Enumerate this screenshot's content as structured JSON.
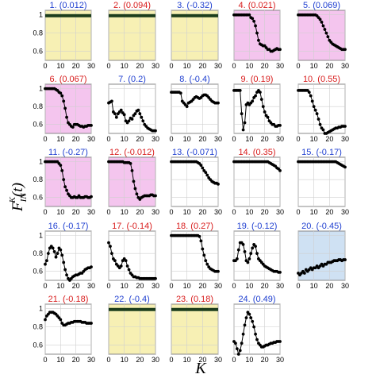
{
  "figure": {
    "ylabel": "F_IN^K(t)",
    "ylabel_main": "F",
    "ylabel_sup": "K",
    "ylabel_sub": "IN",
    "ylabel_arg": "(t)",
    "xlabel": "K",
    "colors": {
      "yellow_bg": "#f7f0b4",
      "pink_bg": "#f4c5ee",
      "blue_bg": "#cfe1f3",
      "white_bg": "#ffffff",
      "blue_text": "#1f3fd0",
      "red_text": "#d81b1b",
      "marker": "#000000",
      "flat_line": "#1c3d1c"
    }
  },
  "chart_data": [
    {
      "id": 1,
      "label_num": "1.",
      "label_val": "(0.012)",
      "label_color": "blue",
      "bg": "yellow",
      "type": "line",
      "xlim": [
        0,
        30
      ],
      "ylim": [
        0.5,
        1.05
      ],
      "xticks": [
        0,
        10,
        20,
        30
      ],
      "yticks": [
        0.6,
        0.8,
        1
      ],
      "show_yticks": true,
      "flat": true,
      "values": [
        1,
        1,
        1,
        1,
        1,
        1,
        1,
        1,
        1,
        1,
        1,
        1,
        1,
        1,
        1,
        1,
        1,
        1,
        1,
        1,
        1,
        1,
        1,
        1,
        1,
        1,
        1,
        1,
        1,
        1,
        1
      ]
    },
    {
      "id": 2,
      "label_num": "2.",
      "label_val": "(0.094)",
      "label_color": "red",
      "bg": "yellow",
      "type": "line",
      "xlim": [
        0,
        30
      ],
      "ylim": [
        0.5,
        1.05
      ],
      "xticks": [
        0,
        10,
        20,
        30
      ],
      "show_yticks": false,
      "flat": true,
      "values": [
        1,
        1,
        1,
        1,
        1,
        1,
        1,
        1,
        1,
        1,
        1,
        1,
        1,
        1,
        1,
        1,
        1,
        1,
        1,
        1,
        1,
        1,
        1,
        1,
        1,
        1,
        1,
        1,
        1,
        1,
        1
      ]
    },
    {
      "id": 3,
      "label_num": "3.",
      "label_val": "(-0.32)",
      "label_color": "blue",
      "bg": "yellow",
      "type": "line",
      "xlim": [
        0,
        30
      ],
      "ylim": [
        0.5,
        1.05
      ],
      "xticks": [
        0,
        10,
        20,
        30
      ],
      "show_yticks": false,
      "flat": true,
      "values": [
        1,
        1,
        1,
        1,
        1,
        1,
        1,
        1,
        1,
        1,
        1,
        1,
        1,
        1,
        1,
        1,
        1,
        1,
        1,
        1,
        1,
        1,
        1,
        1,
        1,
        1,
        1,
        1,
        1,
        1,
        1
      ]
    },
    {
      "id": 4,
      "label_num": "4.",
      "label_val": "(0.021)",
      "label_color": "red",
      "bg": "pink",
      "type": "line",
      "xlim": [
        0,
        30
      ],
      "ylim": [
        0.5,
        1.05
      ],
      "xticks": [
        0,
        10,
        20,
        30
      ],
      "show_yticks": false,
      "flat": false,
      "values": [
        1,
        1,
        1,
        1,
        1,
        1,
        1,
        1,
        1,
        1,
        1,
        0.97,
        0.96,
        0.93,
        0.88,
        0.8,
        0.72,
        0.68,
        0.67,
        0.66,
        0.66,
        0.64,
        0.62,
        0.62,
        0.6,
        0.6,
        0.61,
        0.62,
        0.63,
        0.62,
        0.62
      ]
    },
    {
      "id": 5,
      "label_num": "5.",
      "label_val": "(0.069)",
      "label_color": "blue",
      "bg": "pink",
      "type": "line",
      "xlim": [
        0,
        30
      ],
      "ylim": [
        0.5,
        1.05
      ],
      "xticks": [
        0,
        10,
        20,
        30
      ],
      "show_yticks": false,
      "flat": false,
      "values": [
        1,
        1,
        1,
        1,
        1,
        1,
        1,
        1,
        1,
        1,
        1,
        1,
        0.99,
        0.97,
        0.95,
        0.92,
        0.88,
        0.84,
        0.8,
        0.76,
        0.72,
        0.7,
        0.68,
        0.67,
        0.66,
        0.65,
        0.64,
        0.63,
        0.62,
        0.62,
        0.62
      ]
    },
    {
      "id": 6,
      "label_num": "6.",
      "label_val": "(0.067)",
      "label_color": "red",
      "bg": "pink",
      "type": "line",
      "xlim": [
        0,
        30
      ],
      "ylim": [
        0.5,
        1.05
      ],
      "xticks": [
        0,
        10,
        20,
        30
      ],
      "yticks": [
        0.6,
        0.8,
        1
      ],
      "show_yticks": true,
      "flat": false,
      "values": [
        1,
        1,
        1,
        1,
        1,
        1,
        1,
        0.99,
        0.98,
        0.96,
        0.95,
        0.92,
        0.86,
        0.78,
        0.68,
        0.62,
        0.6,
        0.58,
        0.57,
        0.6,
        0.6,
        0.6,
        0.59,
        0.58,
        0.58,
        0.57,
        0.58,
        0.58,
        0.59,
        0.59,
        0.59
      ]
    },
    {
      "id": 7,
      "label_num": "7.",
      "label_val": "(0.2)",
      "label_color": "blue",
      "bg": "white",
      "type": "line",
      "xlim": [
        0,
        30
      ],
      "ylim": [
        0.5,
        1.05
      ],
      "xticks": [
        0,
        10,
        20,
        30
      ],
      "show_yticks": false,
      "flat": false,
      "values": [
        0.84,
        0.85,
        0.86,
        0.74,
        0.72,
        0.68,
        0.72,
        0.74,
        0.76,
        0.73,
        0.71,
        0.64,
        0.62,
        0.64,
        0.67,
        0.66,
        0.7,
        0.72,
        0.75,
        0.76,
        0.72,
        0.68,
        0.64,
        0.6,
        0.58,
        0.56,
        0.55,
        0.54,
        0.53,
        0.53,
        0.53
      ]
    },
    {
      "id": 8,
      "label_num": "8.",
      "label_val": "(-0.4)",
      "label_color": "blue",
      "bg": "white",
      "type": "line",
      "xlim": [
        0,
        30
      ],
      "ylim": [
        0.5,
        1.05
      ],
      "xticks": [
        0,
        10,
        20,
        30
      ],
      "show_yticks": false,
      "flat": false,
      "values": [
        0.96,
        0.96,
        0.96,
        0.96,
        0.96,
        0.96,
        0.95,
        0.86,
        0.84,
        0.82,
        0.8,
        0.84,
        0.85,
        0.86,
        0.88,
        0.9,
        0.91,
        0.9,
        0.89,
        0.9,
        0.92,
        0.93,
        0.93,
        0.92,
        0.9,
        0.88,
        0.86,
        0.85,
        0.84,
        0.84,
        0.84
      ]
    },
    {
      "id": 9,
      "label_num": "9.",
      "label_val": "(0.19)",
      "label_color": "red",
      "bg": "white",
      "type": "line",
      "xlim": [
        0,
        30
      ],
      "ylim": [
        0.5,
        1.05
      ],
      "xticks": [
        0,
        10,
        20,
        30
      ],
      "show_yticks": false,
      "flat": false,
      "values": [
        0.98,
        0.98,
        0.98,
        0.98,
        0.98,
        0.72,
        0.54,
        0.62,
        0.82,
        0.84,
        0.82,
        0.84,
        0.86,
        0.9,
        0.92,
        0.96,
        0.98,
        0.96,
        0.88,
        0.8,
        0.74,
        0.7,
        0.68,
        0.64,
        0.62,
        0.6,
        0.6,
        0.58,
        0.58,
        0.59,
        0.59
      ]
    },
    {
      "id": 10,
      "label_num": "10.",
      "label_val": "(0.55)",
      "label_color": "red",
      "bg": "white",
      "type": "line",
      "xlim": [
        0,
        30
      ],
      "ylim": [
        0.5,
        1.05
      ],
      "xticks": [
        0,
        10,
        20,
        30
      ],
      "show_yticks": false,
      "flat": false,
      "values": [
        0.98,
        0.98,
        0.98,
        0.98,
        0.98,
        0.98,
        0.98,
        0.96,
        0.92,
        0.86,
        0.8,
        0.76,
        0.72,
        0.66,
        0.6,
        0.56,
        0.54,
        0.5,
        0.5,
        0.51,
        0.52,
        0.53,
        0.54,
        0.55,
        0.56,
        0.56,
        0.57,
        0.57,
        0.58,
        0.58,
        0.58
      ]
    },
    {
      "id": 11,
      "label_num": "11.",
      "label_val": "(-0.27)",
      "label_color": "blue",
      "bg": "pink",
      "type": "line",
      "xlim": [
        0,
        30
      ],
      "ylim": [
        0.5,
        1.05
      ],
      "xticks": [
        0,
        10,
        20,
        30
      ],
      "yticks": [
        0.6,
        0.8,
        1
      ],
      "show_yticks": true,
      "flat": false,
      "values": [
        1,
        1,
        1,
        1,
        1,
        1,
        1,
        1,
        1,
        0.98,
        0.96,
        0.9,
        0.8,
        0.72,
        0.68,
        0.64,
        0.62,
        0.6,
        0.6,
        0.61,
        0.6,
        0.6,
        0.62,
        0.6,
        0.6,
        0.6,
        0.61,
        0.61,
        0.6,
        0.6,
        0.61
      ]
    },
    {
      "id": 12,
      "label_num": "12.",
      "label_val": "(-0.012)",
      "label_color": "red",
      "bg": "pink",
      "type": "line",
      "xlim": [
        0,
        30
      ],
      "ylim": [
        0.5,
        1.05
      ],
      "xticks": [
        0,
        10,
        20,
        30
      ],
      "show_yticks": false,
      "flat": false,
      "values": [
        1,
        1,
        1,
        1,
        1,
        1,
        1,
        1,
        1,
        1,
        0.99,
        0.99,
        0.99,
        0.99,
        0.98,
        0.9,
        0.78,
        0.7,
        0.64,
        0.6,
        0.58,
        0.6,
        0.61,
        0.62,
        0.62,
        0.62,
        0.62,
        0.63,
        0.63,
        0.62,
        0.62
      ]
    },
    {
      "id": 13,
      "label_num": "13.",
      "label_val": "(-0.071)",
      "label_color": "blue",
      "bg": "white",
      "type": "line",
      "xlim": [
        0,
        30
      ],
      "ylim": [
        0.5,
        1.05
      ],
      "xticks": [
        0,
        10,
        20,
        30
      ],
      "show_yticks": false,
      "flat": false,
      "values": [
        1,
        1,
        1,
        1,
        1,
        1,
        1,
        1,
        1,
        1,
        1,
        1,
        1,
        1,
        1,
        1,
        1,
        0.99,
        0.98,
        0.96,
        0.93,
        0.9,
        0.88,
        0.85,
        0.82,
        0.8,
        0.78,
        0.77,
        0.76,
        0.76,
        0.75
      ]
    },
    {
      "id": 14,
      "label_num": "14.",
      "label_val": "(0.35)",
      "label_color": "red",
      "bg": "white",
      "type": "line",
      "xlim": [
        0,
        30
      ],
      "ylim": [
        0.5,
        1.05
      ],
      "xticks": [
        0,
        10,
        20,
        30
      ],
      "show_yticks": false,
      "flat": false,
      "values": [
        1,
        1,
        1,
        1,
        1,
        1,
        1,
        1,
        1,
        1,
        1,
        1,
        1,
        1,
        1,
        1,
        1,
        1,
        1,
        1,
        1,
        1,
        1,
        0.99,
        0.98,
        0.97,
        0.96,
        0.95,
        0.93,
        0.92,
        0.9
      ]
    },
    {
      "id": 15,
      "label_num": "15.",
      "label_val": "(-0.17)",
      "label_color": "blue",
      "bg": "white",
      "type": "line",
      "xlim": [
        0,
        30
      ],
      "ylim": [
        0.5,
        1.05
      ],
      "xticks": [
        0,
        10,
        20,
        30
      ],
      "show_yticks": false,
      "flat": false,
      "values": [
        1,
        1,
        1,
        1,
        1,
        1,
        1,
        1,
        1,
        1,
        1,
        1,
        1,
        1,
        1,
        1,
        1,
        1,
        1,
        1,
        1,
        1,
        1,
        1,
        1,
        0.99,
        0.98,
        0.97,
        0.96,
        0.95,
        0.94
      ]
    },
    {
      "id": 16,
      "label_num": "16.",
      "label_val": "(-0.17)",
      "label_color": "blue",
      "bg": "white",
      "type": "line",
      "xlim": [
        0,
        30
      ],
      "ylim": [
        0.5,
        1.05
      ],
      "xticks": [
        0,
        10,
        20,
        30
      ],
      "yticks": [
        0.6,
        0.8,
        1
      ],
      "show_yticks": true,
      "flat": false,
      "values": [
        0.68,
        0.72,
        0.8,
        0.86,
        0.88,
        0.86,
        0.82,
        0.76,
        0.8,
        0.86,
        0.84,
        0.78,
        0.7,
        0.62,
        0.56,
        0.52,
        0.5,
        0.52,
        0.54,
        0.55,
        0.56,
        0.56,
        0.57,
        0.58,
        0.58,
        0.6,
        0.62,
        0.63,
        0.64,
        0.64,
        0.65
      ]
    },
    {
      "id": 17,
      "label_num": "17.",
      "label_val": "(-0.14)",
      "label_color": "red",
      "bg": "white",
      "type": "line",
      "xlim": [
        0,
        30
      ],
      "ylim": [
        0.5,
        1.05
      ],
      "xticks": [
        0,
        10,
        20,
        30
      ],
      "show_yticks": false,
      "flat": false,
      "values": [
        0.92,
        0.88,
        0.8,
        0.74,
        0.72,
        0.68,
        0.66,
        0.64,
        0.66,
        0.72,
        0.74,
        0.72,
        0.66,
        0.62,
        0.58,
        0.56,
        0.54,
        0.54,
        0.53,
        0.53,
        0.52,
        0.52,
        0.52,
        0.52,
        0.52,
        0.52,
        0.52,
        0.52,
        0.52,
        0.52,
        0.52
      ]
    },
    {
      "id": 18,
      "label_num": "18.",
      "label_val": "(0.27)",
      "label_color": "red",
      "bg": "white",
      "type": "line",
      "xlim": [
        0,
        30
      ],
      "ylim": [
        0.5,
        1.05
      ],
      "xticks": [
        0,
        10,
        20,
        30
      ],
      "show_yticks": false,
      "flat": false,
      "values": [
        1,
        1,
        1,
        1,
        1,
        1,
        1,
        1,
        1,
        1,
        1,
        1,
        1,
        1,
        1,
        1,
        1,
        1,
        0.99,
        0.94,
        0.85,
        0.78,
        0.72,
        0.68,
        0.65,
        0.63,
        0.62,
        0.61,
        0.6,
        0.6,
        0.6
      ]
    },
    {
      "id": 19,
      "label_num": "19.",
      "label_val": "(-0.12)",
      "label_color": "blue",
      "bg": "white",
      "type": "line",
      "xlim": [
        0,
        30
      ],
      "ylim": [
        0.5,
        1.05
      ],
      "xticks": [
        0,
        10,
        20,
        30
      ],
      "show_yticks": false,
      "flat": false,
      "values": [
        0.72,
        0.72,
        0.74,
        0.84,
        0.92,
        0.92,
        0.9,
        0.82,
        0.72,
        0.7,
        0.74,
        0.8,
        0.86,
        0.9,
        0.88,
        0.8,
        0.74,
        0.72,
        0.7,
        0.68,
        0.66,
        0.65,
        0.64,
        0.63,
        0.62,
        0.61,
        0.6,
        0.6,
        0.6,
        0.59,
        0.59
      ]
    },
    {
      "id": 20,
      "label_num": "20.",
      "label_val": "(-0.45)",
      "label_color": "blue",
      "bg": "blue",
      "type": "line",
      "xlim": [
        0,
        30
      ],
      "ylim": [
        0.5,
        1.05
      ],
      "xticks": [
        0,
        10,
        20,
        30
      ],
      "show_yticks": false,
      "flat": false,
      "values": [
        0.58,
        0.56,
        0.58,
        0.6,
        0.58,
        0.62,
        0.6,
        0.62,
        0.64,
        0.62,
        0.64,
        0.64,
        0.66,
        0.64,
        0.66,
        0.68,
        0.66,
        0.68,
        0.68,
        0.7,
        0.7,
        0.7,
        0.71,
        0.72,
        0.72,
        0.72,
        0.73,
        0.73,
        0.72,
        0.73,
        0.73
      ]
    },
    {
      "id": 21,
      "label_num": "21.",
      "label_val": "(-0.18)",
      "label_color": "red",
      "bg": "white",
      "type": "line",
      "xlim": [
        0,
        30
      ],
      "ylim": [
        0.5,
        1.05
      ],
      "xticks": [
        0,
        10,
        20,
        30
      ],
      "yticks": [
        0.6,
        0.8,
        1
      ],
      "show_yticks": true,
      "flat": false,
      "values": [
        0.88,
        0.92,
        0.94,
        0.96,
        0.96,
        0.96,
        0.95,
        0.94,
        0.92,
        0.9,
        0.88,
        0.84,
        0.82,
        0.82,
        0.83,
        0.84,
        0.84,
        0.85,
        0.85,
        0.86,
        0.86,
        0.86,
        0.86,
        0.86,
        0.85,
        0.85,
        0.85,
        0.84,
        0.84,
        0.84,
        0.84
      ]
    },
    {
      "id": 22,
      "label_num": "22.",
      "label_val": "(-0.4)",
      "label_color": "blue",
      "bg": "yellow",
      "type": "line",
      "xlim": [
        0,
        30
      ],
      "ylim": [
        0.5,
        1.05
      ],
      "xticks": [
        0,
        10,
        20,
        30
      ],
      "show_yticks": false,
      "flat": true,
      "values": [
        1,
        1,
        1,
        1,
        1,
        1,
        1,
        1,
        1,
        1,
        1,
        1,
        1,
        1,
        1,
        1,
        1,
        1,
        1,
        1,
        1,
        1,
        1,
        1,
        1,
        1,
        1,
        1,
        1,
        1,
        1
      ]
    },
    {
      "id": 23,
      "label_num": "23.",
      "label_val": "(0.18)",
      "label_color": "red",
      "bg": "yellow",
      "type": "line",
      "xlim": [
        0,
        30
      ],
      "ylim": [
        0.5,
        1.05
      ],
      "xticks": [
        0,
        10,
        20,
        30
      ],
      "show_yticks": false,
      "flat": true,
      "values": [
        1,
        1,
        1,
        1,
        1,
        1,
        1,
        1,
        1,
        1,
        1,
        1,
        1,
        1,
        1,
        1,
        1,
        1,
        1,
        1,
        1,
        1,
        1,
        1,
        1,
        1,
        1,
        1,
        1,
        1,
        1
      ]
    },
    {
      "id": 24,
      "label_num": "24.",
      "label_val": "(0.49)",
      "label_color": "blue",
      "bg": "white",
      "type": "line",
      "xlim": [
        0,
        30
      ],
      "ylim": [
        0.5,
        1.05
      ],
      "xticks": [
        0,
        10,
        20,
        30
      ],
      "show_yticks": false,
      "flat": false,
      "values": [
        0.64,
        0.62,
        0.56,
        0.5,
        0.54,
        0.62,
        0.72,
        0.82,
        0.9,
        0.96,
        0.94,
        0.9,
        0.86,
        0.8,
        0.72,
        0.66,
        0.62,
        0.6,
        0.58,
        0.58,
        0.59,
        0.6,
        0.6,
        0.61,
        0.62,
        0.62,
        0.63,
        0.63,
        0.64,
        0.64,
        0.64
      ]
    }
  ]
}
